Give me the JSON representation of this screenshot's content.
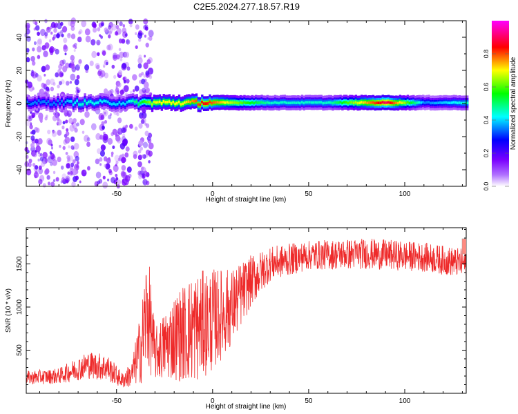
{
  "title": "C2E5.2024.277.18.57.R19",
  "colors": {
    "snr_line": "#ee2a2a",
    "axis": "#000000",
    "background": "#ffffff"
  },
  "chart_data": [
    {
      "type": "heatmap",
      "title": "",
      "xlabel": "Height of straight line (km)",
      "ylabel": "Frequency (Hz)",
      "xlim": [
        -97,
        132
      ],
      "ylim": [
        -50,
        50
      ],
      "x_ticks": [
        "-50",
        "0",
        "50",
        "100"
      ],
      "y_ticks": [
        "-40",
        "-20",
        "0",
        "20",
        "40"
      ],
      "colorbar": {
        "label": "Normalized spectral amplitude",
        "range": [
          0.0,
          1.0
        ],
        "ticks": [
          "0.0",
          "0.2",
          "0.4",
          "0.6",
          "0.8"
        ],
        "colormap": [
          "#ffffff",
          "#7a00ff",
          "#0000ff",
          "#00ffff",
          "#00ff00",
          "#ffff00",
          "#ff0000",
          "#ff00ff"
        ]
      },
      "ridge": {
        "frequency_hz": 0.5,
        "amplitude_profile": [
          {
            "x": -80,
            "amp": 0.35
          },
          {
            "x": -68,
            "amp": 0.45
          },
          {
            "x": -55,
            "amp": 0.4
          },
          {
            "x": -45,
            "amp": 0.4
          },
          {
            "x": -30,
            "amp": 0.7
          },
          {
            "x": -15,
            "amp": 0.7
          },
          {
            "x": -5,
            "amp": 0.85
          },
          {
            "x": 10,
            "amp": 0.65
          },
          {
            "x": 30,
            "amp": 0.45
          },
          {
            "x": 60,
            "amp": 0.45
          },
          {
            "x": 90,
            "amp": 0.9
          },
          {
            "x": 110,
            "amp": 0.35
          },
          {
            "x": 132,
            "amp": 0.45
          }
        ]
      }
    },
    {
      "type": "line",
      "title": "",
      "xlabel": "Height of straight line (km)",
      "ylabel": "SNR (10 * v/v)",
      "xlim": [
        -97,
        132
      ],
      "ylim": [
        0,
        1920
      ],
      "x_ticks": [
        "-50",
        "0",
        "50",
        "100"
      ],
      "y_ticks": [
        "500",
        "1000",
        "1500"
      ],
      "envelope": [
        {
          "x": -97,
          "mean": 180,
          "amp": 80
        },
        {
          "x": -80,
          "mean": 200,
          "amp": 90
        },
        {
          "x": -65,
          "mean": 330,
          "amp": 160
        },
        {
          "x": -55,
          "mean": 300,
          "amp": 160
        },
        {
          "x": -47,
          "mean": 150,
          "amp": 90
        },
        {
          "x": -42,
          "mean": 220,
          "amp": 150
        },
        {
          "x": -37,
          "mean": 560,
          "amp": 450
        },
        {
          "x": -34,
          "mean": 1000,
          "amp": 750
        },
        {
          "x": -30,
          "mean": 450,
          "amp": 300
        },
        {
          "x": -20,
          "mean": 650,
          "amp": 500
        },
        {
          "x": -10,
          "mean": 750,
          "amp": 650
        },
        {
          "x": 0,
          "mean": 850,
          "amp": 600
        },
        {
          "x": 10,
          "mean": 1000,
          "amp": 450
        },
        {
          "x": 20,
          "mean": 1300,
          "amp": 300
        },
        {
          "x": 30,
          "mean": 1500,
          "amp": 200
        },
        {
          "x": 50,
          "mean": 1600,
          "amp": 170
        },
        {
          "x": 80,
          "mean": 1620,
          "amp": 180
        },
        {
          "x": 110,
          "mean": 1580,
          "amp": 170
        },
        {
          "x": 132,
          "mean": 1500,
          "amp": 170
        }
      ]
    }
  ]
}
